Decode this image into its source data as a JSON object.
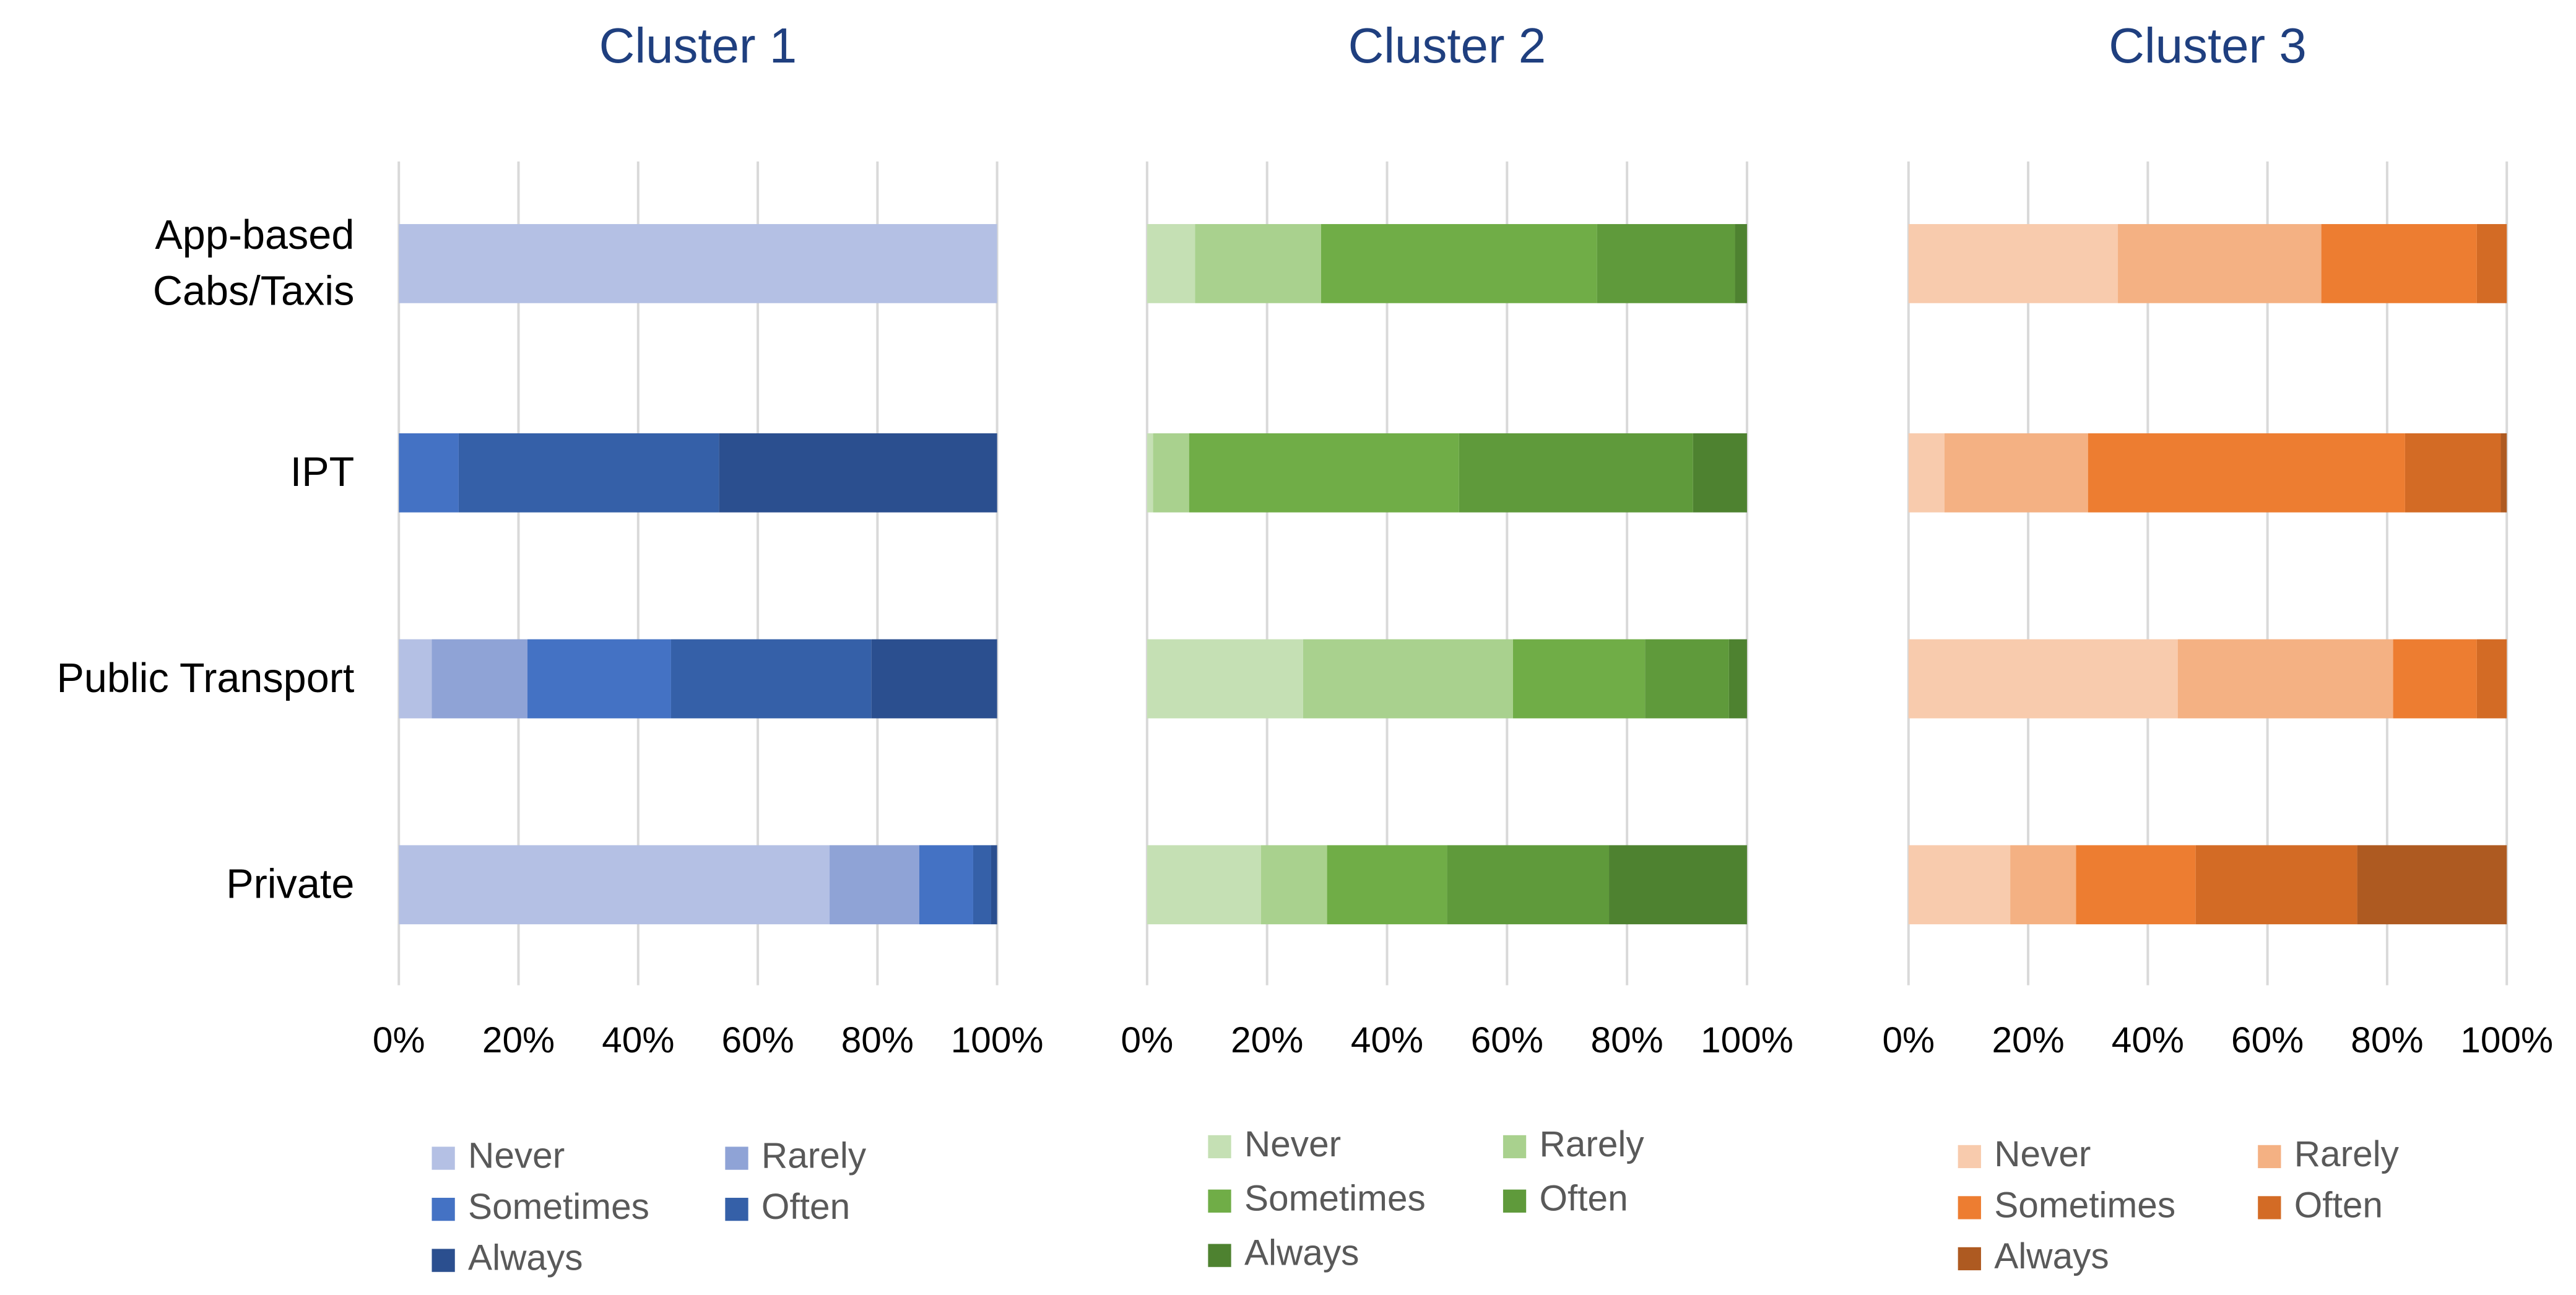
{
  "chart_data": [
    {
      "type": "bar",
      "title": "Cluster 1",
      "categories": [
        "App-based Cabs/Taxis",
        "IPT",
        "Public Transport",
        "Private"
      ],
      "xlim": [
        0,
        100
      ],
      "xticks": [
        {
          "value": 0,
          "label": "0%"
        },
        {
          "value": 20,
          "label": "20%"
        },
        {
          "value": 40,
          "label": "40%"
        },
        {
          "value": 60,
          "label": "60%"
        },
        {
          "value": 80,
          "label": "80%"
        },
        {
          "value": 100,
          "label": "100%"
        }
      ],
      "grid": true,
      "series": [
        {
          "name": "Never",
          "color": "#b4c0e4",
          "values": [
            100,
            0,
            5.5,
            72
          ]
        },
        {
          "name": "Rarely",
          "color": "#8fa3d6",
          "values": [
            0,
            0,
            16,
            15
          ]
        },
        {
          "name": "Sometimes",
          "color": "#4472c4",
          "values": [
            0,
            10,
            24,
            9
          ]
        },
        {
          "name": "Often",
          "color": "#3560a8",
          "values": [
            0,
            43.5,
            33.5,
            3
          ]
        },
        {
          "name": "Always",
          "color": "#2b4f8f",
          "values": [
            0,
            46.5,
            21,
            1
          ]
        }
      ]
    },
    {
      "type": "bar",
      "title": "Cluster 2",
      "xlim": [
        0,
        100
      ],
      "xticks": [
        {
          "value": 0,
          "label": "0%"
        },
        {
          "value": 20,
          "label": "20%"
        },
        {
          "value": 40,
          "label": "40%"
        },
        {
          "value": 60,
          "label": "60%"
        },
        {
          "value": 80,
          "label": "80%"
        },
        {
          "value": 100,
          "label": "100%"
        }
      ],
      "grid": true,
      "series": [
        {
          "name": "Never",
          "color": "#c5e0b4",
          "values": [
            8,
            1,
            26,
            19
          ]
        },
        {
          "name": "Rarely",
          "color": "#a9d18e",
          "values": [
            21,
            6,
            35,
            11
          ]
        },
        {
          "name": "Sometimes",
          "color": "#70ad47",
          "values": [
            46,
            45,
            22,
            20
          ]
        },
        {
          "name": "Often",
          "color": "#5f9a3b",
          "values": [
            23,
            39,
            14,
            27
          ]
        },
        {
          "name": "Always",
          "color": "#4e8230",
          "values": [
            2,
            9,
            3,
            23
          ]
        }
      ]
    },
    {
      "type": "bar",
      "title": "Cluster 3",
      "xlim": [
        0,
        100
      ],
      "xticks": [
        {
          "value": 0,
          "label": "0%"
        },
        {
          "value": 20,
          "label": "20%"
        },
        {
          "value": 40,
          "label": "40%"
        },
        {
          "value": 60,
          "label": "60%"
        },
        {
          "value": 80,
          "label": "80%"
        },
        {
          "value": 100,
          "label": "100%"
        }
      ],
      "grid": true,
      "series": [
        {
          "name": "Never",
          "color": "#f8cbad",
          "values": [
            35,
            6,
            45,
            17
          ]
        },
        {
          "name": "Rarely",
          "color": "#f4b183",
          "values": [
            34,
            24,
            36,
            11
          ]
        },
        {
          "name": "Sometimes",
          "color": "#ed7d31",
          "values": [
            26,
            53,
            14,
            20
          ]
        },
        {
          "name": "Often",
          "color": "#d36b25",
          "values": [
            5,
            16,
            5,
            27
          ]
        },
        {
          "name": "Always",
          "color": "#ae5a21",
          "values": [
            0,
            1,
            0,
            25
          ]
        }
      ]
    }
  ]
}
